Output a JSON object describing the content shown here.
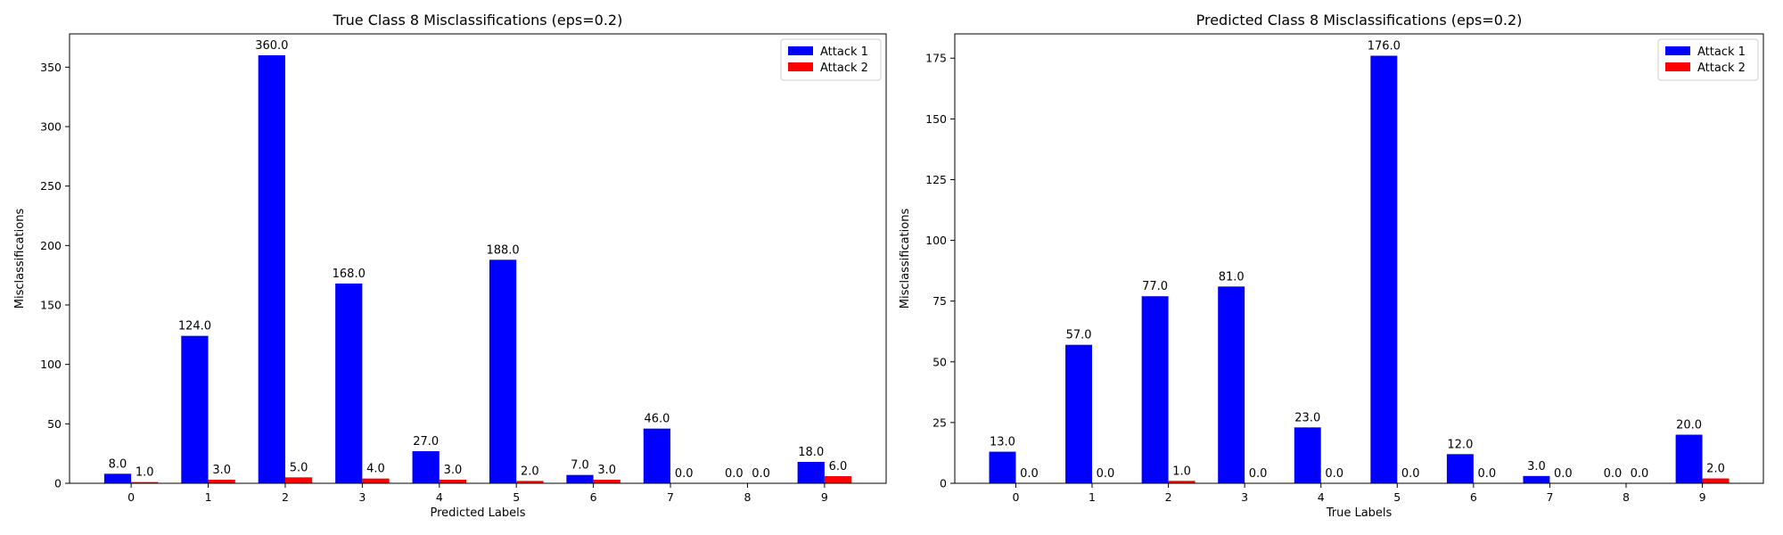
{
  "colors": {
    "attack1": "#0000ff",
    "attack2": "#ff0000"
  },
  "chart_data": [
    {
      "type": "bar",
      "title": "True Class 8 Misclassifications (eps=0.2)",
      "xlabel": "Predicted Labels",
      "ylabel": "Misclassifications",
      "categories": [
        "0",
        "1",
        "2",
        "3",
        "4",
        "5",
        "6",
        "7",
        "8",
        "9"
      ],
      "series": [
        {
          "name": "Attack 1",
          "values": [
            8.0,
            124.0,
            360.0,
            168.0,
            27.0,
            188.0,
            7.0,
            46.0,
            0.0,
            18.0
          ]
        },
        {
          "name": "Attack 2",
          "values": [
            1.0,
            3.0,
            5.0,
            4.0,
            3.0,
            2.0,
            3.0,
            0.0,
            0.0,
            6.0
          ]
        }
      ],
      "data_labels": [
        [
          "8.0",
          "124.0",
          "360.0",
          "168.0",
          "27.0",
          "188.0",
          "7.0",
          "46.0",
          "0.0",
          "18.0"
        ],
        [
          "1.0",
          "3.0",
          "5.0",
          "4.0",
          "3.0",
          "2.0",
          "3.0",
          "0.0",
          "0.0",
          "6.0"
        ]
      ],
      "ylim": [
        0,
        378
      ],
      "yticks": [
        0,
        50,
        100,
        150,
        200,
        250,
        300,
        350
      ],
      "legend": "top-right",
      "grid": false
    },
    {
      "type": "bar",
      "title": "Predicted Class 8 Misclassifications (eps=0.2)",
      "xlabel": "True Labels",
      "ylabel": "Misclassifications",
      "categories": [
        "0",
        "1",
        "2",
        "3",
        "4",
        "5",
        "6",
        "7",
        "8",
        "9"
      ],
      "series": [
        {
          "name": "Attack 1",
          "values": [
            13.0,
            57.0,
            77.0,
            81.0,
            23.0,
            176.0,
            12.0,
            3.0,
            0.0,
            20.0
          ]
        },
        {
          "name": "Attack 2",
          "values": [
            0.0,
            0.0,
            1.0,
            0.0,
            0.0,
            0.0,
            0.0,
            0.0,
            0.0,
            2.0
          ]
        }
      ],
      "data_labels": [
        [
          "13.0",
          "57.0",
          "77.0",
          "81.0",
          "23.0",
          "176.0",
          "12.0",
          "3.0",
          "0.0",
          "20.0"
        ],
        [
          "0.0",
          "0.0",
          "1.0",
          "0.0",
          "0.0",
          "0.0",
          "0.0",
          "0.0",
          "0.0",
          "2.0"
        ]
      ],
      "ylim": [
        0,
        185
      ],
      "yticks": [
        0,
        25,
        50,
        75,
        100,
        125,
        150,
        175
      ],
      "legend": "top-right",
      "grid": false
    }
  ]
}
